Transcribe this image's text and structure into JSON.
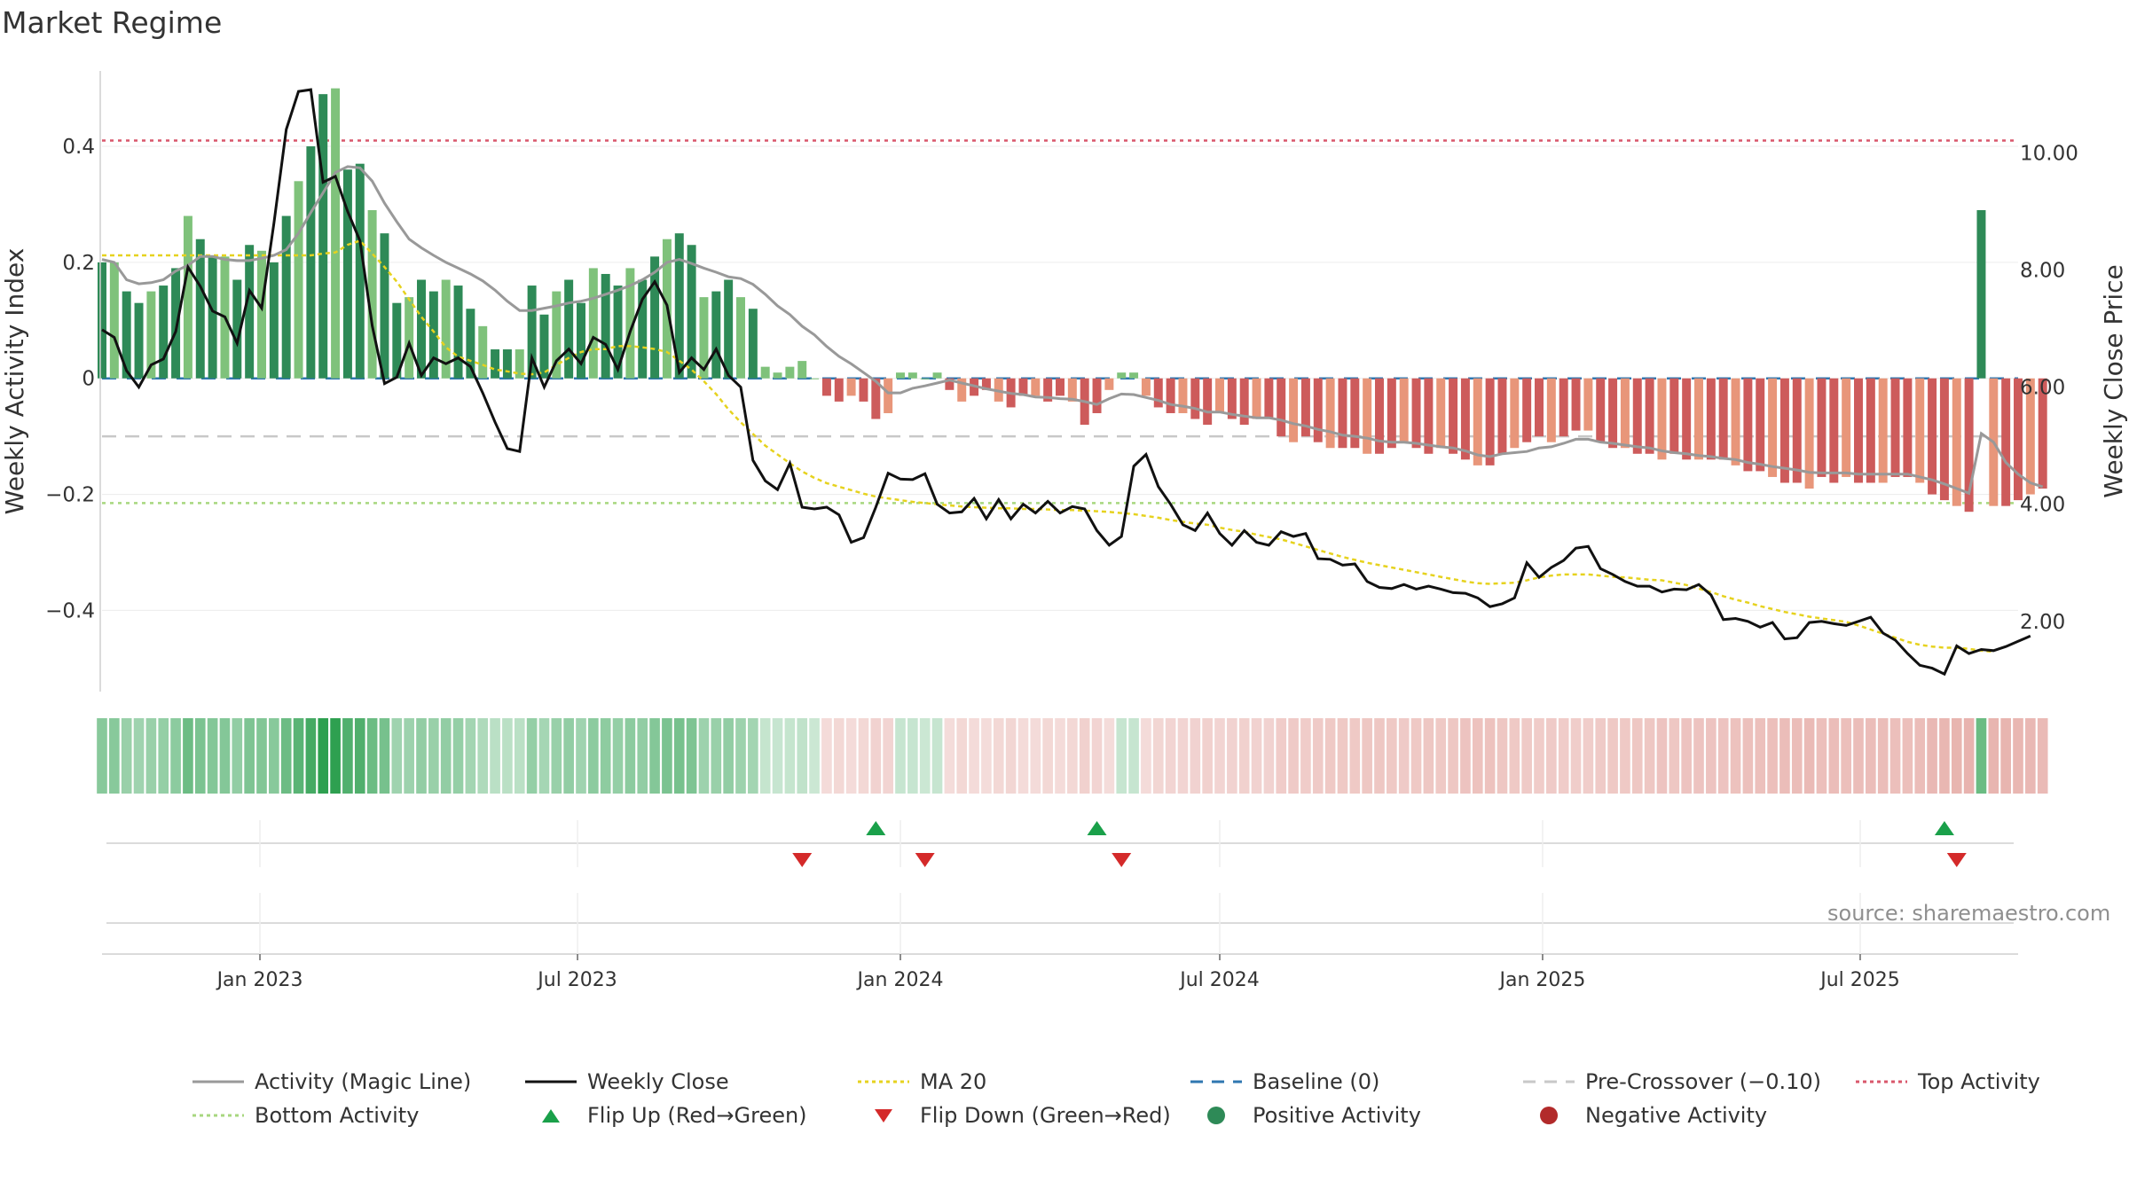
{
  "title": "Market Regime",
  "source": "source: sharemaestro.com",
  "colors": {
    "green_dark": "#2e8a57",
    "green_light": "#7fc27b",
    "red_dark": "#cd5b5b",
    "red_light": "#e8967a",
    "magic_line": "#999999",
    "close": "#111111",
    "ma20": "#e6d21e",
    "baseline": "#2f77b0",
    "pre_crossover": "#c8c8c8",
    "top": "#d9576b",
    "bottom": "#a8d77f",
    "flip_up": "#1aa04a",
    "flip_down": "#d42a2a"
  },
  "chart_data": {
    "type": "bar",
    "title": "Market Regime",
    "x_axis": {
      "type": "date",
      "range": [
        "2022-10-03",
        "2025-09-29"
      ],
      "tick_labels": [
        "Jan 2023",
        "Jul 2023",
        "Jan 2024",
        "Jul 2024",
        "Jan 2025",
        "Jul 2025"
      ],
      "tick_dates": [
        "2023-01-01",
        "2023-07-01",
        "2024-01-01",
        "2024-07-01",
        "2025-01-01",
        "2025-07-01"
      ]
    },
    "y_left": {
      "label": "Weekly Activity Index",
      "range": [
        -0.54,
        0.53
      ],
      "ticks": [
        -0.4,
        -0.2,
        0,
        0.2,
        0.4
      ],
      "tick_labels": [
        "−0.4",
        "−0.2",
        "0",
        "0.2",
        "0.4"
      ]
    },
    "y_right": {
      "label": "Weekly Close Price",
      "range": [
        0.8,
        11.4
      ],
      "ticks": [
        2,
        4,
        6,
        8,
        10
      ],
      "tick_labels": [
        "2.00",
        "4.00",
        "6.00",
        "8.00",
        "10.00"
      ]
    },
    "reference_lines": {
      "top_activity": 0.41,
      "bottom_activity": -0.215,
      "baseline": 0,
      "pre_crossover": -0.1
    },
    "start_date": "2022-10-03",
    "week_step_days": 7,
    "activity": [
      0.2,
      0.2,
      0.15,
      0.13,
      0.15,
      0.16,
      0.19,
      0.28,
      0.24,
      0.21,
      0.21,
      0.17,
      0.23,
      0.22,
      0.2,
      0.28,
      0.34,
      0.4,
      0.49,
      0.5,
      0.36,
      0.37,
      0.29,
      0.25,
      0.13,
      0.14,
      0.17,
      0.15,
      0.17,
      0.16,
      0.12,
      0.09,
      0.05,
      0.05,
      0.05,
      0.16,
      0.11,
      0.15,
      0.17,
      0.13,
      0.19,
      0.18,
      0.16,
      0.19,
      0.17,
      0.21,
      0.24,
      0.25,
      0.23,
      0.14,
      0.15,
      0.17,
      0.14,
      0.12,
      0.02,
      0.01,
      0.02,
      0.03,
      0.0,
      -0.03,
      -0.04,
      -0.03,
      -0.04,
      -0.07,
      -0.06,
      0.01,
      0.01,
      0.0,
      0.01,
      -0.02,
      -0.04,
      -0.03,
      -0.02,
      -0.04,
      -0.05,
      -0.03,
      -0.03,
      -0.04,
      -0.03,
      -0.04,
      -0.08,
      -0.06,
      -0.02,
      0.01,
      0.01,
      -0.03,
      -0.05,
      -0.06,
      -0.06,
      -0.07,
      -0.08,
      -0.06,
      -0.07,
      -0.08,
      -0.07,
      -0.07,
      -0.1,
      -0.11,
      -0.1,
      -0.11,
      -0.12,
      -0.12,
      -0.12,
      -0.13,
      -0.13,
      -0.12,
      -0.11,
      -0.12,
      -0.13,
      -0.12,
      -0.13,
      -0.14,
      -0.15,
      -0.15,
      -0.13,
      -0.12,
      -0.11,
      -0.1,
      -0.11,
      -0.1,
      -0.09,
      -0.09,
      -0.11,
      -0.12,
      -0.12,
      -0.13,
      -0.13,
      -0.14,
      -0.13,
      -0.14,
      -0.14,
      -0.14,
      -0.14,
      -0.15,
      -0.16,
      -0.16,
      -0.17,
      -0.18,
      -0.18,
      -0.19,
      -0.17,
      -0.18,
      -0.17,
      -0.18,
      -0.18,
      -0.18,
      -0.17,
      -0.17,
      -0.18,
      -0.2,
      -0.21,
      -0.22,
      -0.23,
      0.29,
      -0.22,
      -0.22,
      -0.21,
      -0.2,
      -0.19
    ],
    "activity_magic_line": [
      0.205,
      0.2,
      0.17,
      0.163,
      0.165,
      0.17,
      0.185,
      0.195,
      0.21,
      0.21,
      0.205,
      0.203,
      0.203,
      0.207,
      0.212,
      0.222,
      0.25,
      0.286,
      0.32,
      0.355,
      0.365,
      0.363,
      0.34,
      0.302,
      0.27,
      0.24,
      0.225,
      0.212,
      0.2,
      0.19,
      0.18,
      0.168,
      0.152,
      0.133,
      0.117,
      0.117,
      0.121,
      0.125,
      0.13,
      0.133,
      0.138,
      0.145,
      0.152,
      0.16,
      0.17,
      0.183,
      0.2,
      0.205,
      0.198,
      0.19,
      0.183,
      0.175,
      0.172,
      0.162,
      0.145,
      0.125,
      0.11,
      0.09,
      0.075,
      0.055,
      0.038,
      0.025,
      0.01,
      -0.005,
      -0.025,
      -0.025,
      -0.017,
      -0.013,
      -0.008,
      -0.003,
      -0.008,
      -0.013,
      -0.018,
      -0.022,
      -0.026,
      -0.028,
      -0.032,
      -0.033,
      -0.035,
      -0.036,
      -0.04,
      -0.045,
      -0.035,
      -0.027,
      -0.028,
      -0.033,
      -0.038,
      -0.045,
      -0.048,
      -0.052,
      -0.058,
      -0.058,
      -0.062,
      -0.065,
      -0.068,
      -0.068,
      -0.072,
      -0.078,
      -0.082,
      -0.088,
      -0.092,
      -0.098,
      -0.1,
      -0.103,
      -0.108,
      -0.11,
      -0.11,
      -0.112,
      -0.115,
      -0.118,
      -0.12,
      -0.125,
      -0.132,
      -0.135,
      -0.13,
      -0.128,
      -0.126,
      -0.12,
      -0.118,
      -0.112,
      -0.105,
      -0.105,
      -0.11,
      -0.112,
      -0.115,
      -0.118,
      -0.12,
      -0.125,
      -0.128,
      -0.13,
      -0.133,
      -0.135,
      -0.138,
      -0.14,
      -0.145,
      -0.148,
      -0.152,
      -0.155,
      -0.158,
      -0.162,
      -0.163,
      -0.163,
      -0.163,
      -0.165,
      -0.165,
      -0.165,
      -0.165,
      -0.165,
      -0.17,
      -0.175,
      -0.182,
      -0.19,
      -0.198,
      -0.095,
      -0.11,
      -0.145,
      -0.165,
      -0.18,
      -0.187
    ],
    "weekly_close": [
      6.98,
      6.85,
      6.28,
      6.0,
      6.38,
      6.48,
      6.95,
      8.05,
      7.72,
      7.3,
      7.2,
      6.75,
      7.65,
      7.35,
      8.8,
      10.4,
      11.05,
      11.08,
      9.5,
      9.6,
      9.0,
      8.5,
      7.05,
      6.06,
      6.17,
      6.75,
      6.2,
      6.5,
      6.4,
      6.5,
      6.35,
      5.9,
      5.4,
      4.95,
      4.9,
      6.5,
      6.0,
      6.45,
      6.65,
      6.4,
      6.85,
      6.73,
      6.3,
      6.95,
      7.5,
      7.8,
      7.4,
      6.25,
      6.5,
      6.3,
      6.65,
      6.2,
      6.0,
      4.75,
      4.4,
      4.25,
      4.7,
      3.95,
      3.92,
      3.95,
      3.82,
      3.35,
      3.43,
      3.95,
      4.53,
      4.43,
      4.42,
      4.52,
      4.0,
      3.85,
      3.87,
      4.1,
      3.75,
      4.08,
      3.75,
      4.0,
      3.85,
      4.05,
      3.85,
      3.96,
      3.92,
      3.55,
      3.3,
      3.45,
      4.65,
      4.85,
      4.3,
      4.0,
      3.65,
      3.55,
      3.85,
      3.5,
      3.3,
      3.55,
      3.35,
      3.3,
      3.53,
      3.45,
      3.5,
      3.07,
      3.06,
      2.96,
      2.98,
      2.68,
      2.58,
      2.56,
      2.63,
      2.55,
      2.6,
      2.55,
      2.49,
      2.48,
      2.4,
      2.25,
      2.3,
      2.4,
      3.0,
      2.75,
      2.92,
      3.04,
      3.25,
      3.28,
      2.9,
      2.8,
      2.68,
      2.6,
      2.6,
      2.5,
      2.55,
      2.54,
      2.63,
      2.45,
      2.03,
      2.05,
      2.0,
      1.9,
      1.98,
      1.7,
      1.72,
      1.98,
      2.0,
      1.96,
      1.93,
      2.0,
      2.07,
      1.8,
      1.68,
      1.45,
      1.25,
      1.2,
      1.1,
      1.58,
      1.45,
      1.52,
      1.5,
      1.57,
      1.66,
      1.75
    ],
    "ma20": [
      8.25,
      8.25,
      8.25,
      8.25,
      8.25,
      8.25,
      8.25,
      8.25,
      8.25,
      8.25,
      8.25,
      8.25,
      8.25,
      8.25,
      8.25,
      8.25,
      8.25,
      8.25,
      8.28,
      8.3,
      8.43,
      8.5,
      8.28,
      8.05,
      7.8,
      7.5,
      7.2,
      6.95,
      6.68,
      6.52,
      6.45,
      6.38,
      6.3,
      6.27,
      6.23,
      6.22,
      6.25,
      6.38,
      6.5,
      6.6,
      6.65,
      6.65,
      6.7,
      6.7,
      6.68,
      6.65,
      6.6,
      6.45,
      6.3,
      6.1,
      5.88,
      5.62,
      5.4,
      5.2,
      5.0,
      4.85,
      4.7,
      4.56,
      4.45,
      4.36,
      4.3,
      4.24,
      4.18,
      4.13,
      4.1,
      4.07,
      4.04,
      4.02,
      4.0,
      3.98,
      3.96,
      3.95,
      3.94,
      3.93,
      3.93,
      3.92,
      3.92,
      3.91,
      3.9,
      3.9,
      3.89,
      3.88,
      3.87,
      3.85,
      3.83,
      3.8,
      3.77,
      3.73,
      3.7,
      3.67,
      3.65,
      3.6,
      3.56,
      3.53,
      3.48,
      3.44,
      3.4,
      3.34,
      3.28,
      3.22,
      3.16,
      3.1,
      3.05,
      3.0,
      2.96,
      2.92,
      2.88,
      2.84,
      2.8,
      2.76,
      2.72,
      2.68,
      2.65,
      2.64,
      2.65,
      2.66,
      2.7,
      2.75,
      2.78,
      2.8,
      2.8,
      2.8,
      2.78,
      2.76,
      2.75,
      2.73,
      2.71,
      2.7,
      2.66,
      2.62,
      2.56,
      2.5,
      2.43,
      2.37,
      2.32,
      2.26,
      2.21,
      2.16,
      2.12,
      2.08,
      2.05,
      2.02,
      1.99,
      1.93,
      1.86,
      1.79,
      1.72,
      1.65,
      1.6,
      1.57,
      1.55,
      1.55,
      1.53,
      1.5,
      1.48
    ],
    "flip_up_dates": [
      "2023-12-18",
      "2024-04-22",
      "2025-08-18"
    ],
    "flip_down_dates": [
      "2023-11-06",
      "2024-01-15",
      "2024-05-06",
      "2025-08-25"
    ]
  },
  "legend": [
    {
      "label": "Activity (Magic Line)",
      "style": "line",
      "color": "#999999"
    },
    {
      "label": "Weekly Close",
      "style": "line",
      "color": "#111111"
    },
    {
      "label": "MA 20",
      "style": "dotted",
      "color": "#e6d21e"
    },
    {
      "label": "Baseline (0)",
      "style": "dashed",
      "color": "#2f77b0"
    },
    {
      "label": "Pre-Crossover (−0.10)",
      "style": "dashed",
      "color": "#c8c8c8"
    },
    {
      "label": "Top Activity",
      "style": "dotted",
      "color": "#d9576b"
    },
    {
      "label": "Bottom Activity",
      "style": "dotted",
      "color": "#a8d77f"
    },
    {
      "label": "Flip Up (Red→Green)",
      "style": "triangle-up",
      "color": "#1aa04a"
    },
    {
      "label": "Flip Down (Green→Red)",
      "style": "triangle-down",
      "color": "#d42a2a"
    },
    {
      "label": "Positive Activity",
      "style": "circle",
      "color": "#2e8a57"
    },
    {
      "label": "Negative Activity",
      "style": "circle",
      "color": "#b22a2a"
    }
  ]
}
